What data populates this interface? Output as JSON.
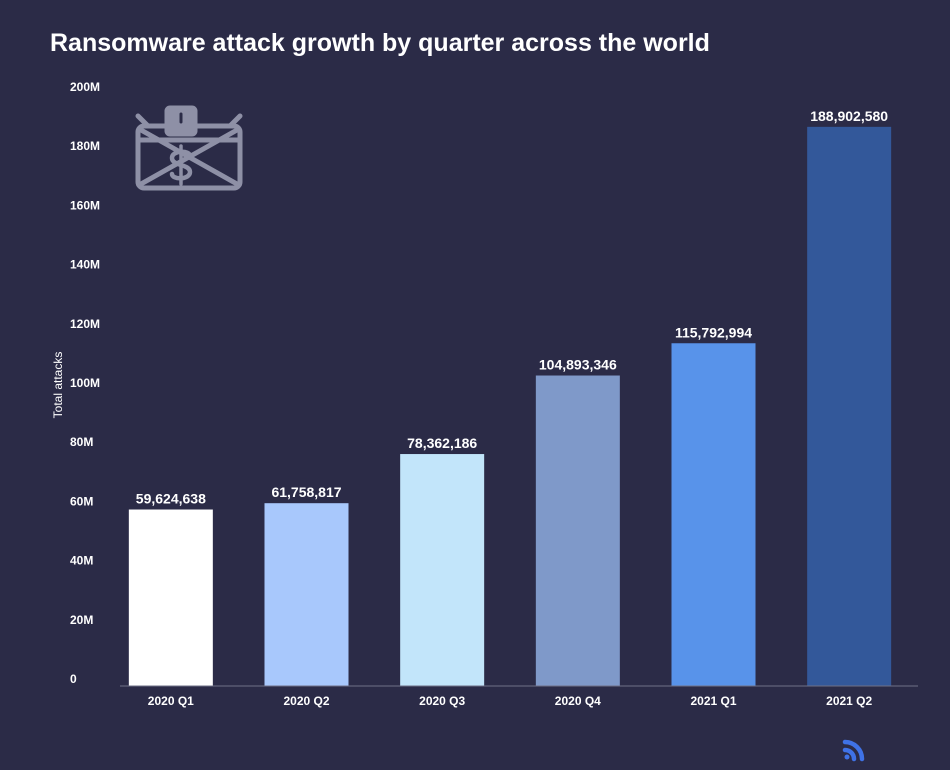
{
  "chart_data": {
    "type": "bar",
    "title": "Ransomware attack growth by quarter across the world",
    "ylabel": "Total attacks",
    "categories": [
      "2020 Q1",
      "2020 Q2",
      "2020 Q3",
      "2020 Q4",
      "2021 Q1",
      "2021 Q2"
    ],
    "values": [
      59624638,
      61758817,
      78362186,
      104893346,
      115792994,
      188902580
    ],
    "value_labels": [
      "59,624,638",
      "61,758,817",
      "78,362,186",
      "104,893,346",
      "115,792,994",
      "188,902,580"
    ],
    "bar_colors": [
      "#ffffff",
      "#a8c8fc",
      "#c2e5fa",
      "#7f99c9",
      "#5893ea",
      "#33589a"
    ],
    "ylim": [
      0,
      200000000
    ],
    "yticks": [
      0,
      20000000,
      40000000,
      60000000,
      80000000,
      100000000,
      120000000,
      140000000,
      160000000,
      180000000,
      200000000
    ],
    "ytick_labels": [
      "0",
      "20M",
      "40M",
      "60M",
      "80M",
      "100M",
      "120M",
      "140M",
      "160M",
      "180M",
      "200M"
    ],
    "grid": false
  },
  "colors": {
    "background": "#2b2b47",
    "text": "#ffffff",
    "axis_line": "#6f7087",
    "illustration": "#8e90a6",
    "logo": "#3f72e6"
  },
  "icons": {
    "illustration": "locked-envelope-dollar-icon",
    "logo": "brand-logo-icon"
  }
}
